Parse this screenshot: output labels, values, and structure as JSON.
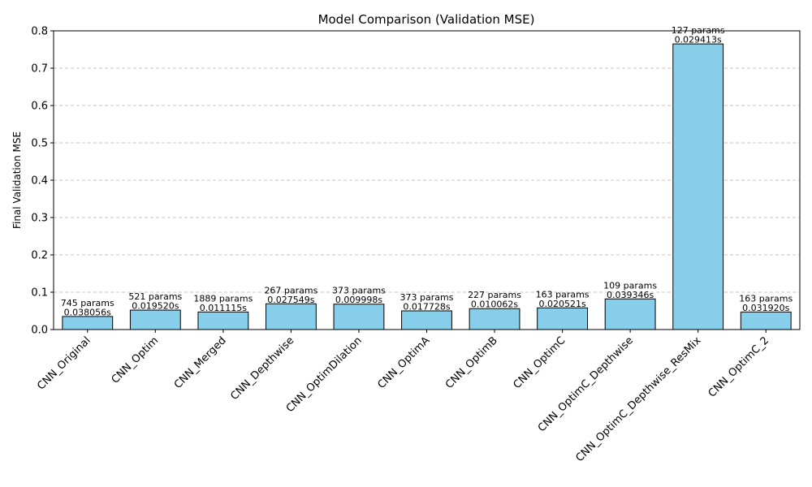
{
  "chart_data": {
    "type": "bar",
    "title": "Model Comparison (Validation MSE)",
    "xlabel": "",
    "ylabel": "Final Validation MSE",
    "ylim": [
      0,
      0.8
    ],
    "yticks": [
      "0.0",
      "0.1",
      "0.2",
      "0.3",
      "0.4",
      "0.5",
      "0.6",
      "0.7",
      "0.8"
    ],
    "grid": "y",
    "bar_color": "#87ceeb",
    "edge_color": "#000000",
    "categories": [
      "CNN_Original",
      "CNN_Optim",
      "CNN_Merged",
      "CNN_Depthwise",
      "CNN_OptimDilation",
      "CNN_OptimA",
      "CNN_OptimB",
      "CNN_OptimC",
      "CNN_OptimC_Depthwise",
      "CNN_OptimC_Depthwise_ResMix",
      "CNN_OptimC_2"
    ],
    "values": [
      0.035,
      0.052,
      0.047,
      0.069,
      0.068,
      0.05,
      0.056,
      0.058,
      0.082,
      0.765,
      0.047
    ],
    "annotations": [
      [
        "745 params",
        "0.038056s"
      ],
      [
        "521 params",
        "0.019520s"
      ],
      [
        "1889 params",
        "0.011115s"
      ],
      [
        "267 params",
        "0.027549s"
      ],
      [
        "373 params",
        "0.009998s"
      ],
      [
        "373 params",
        "0.017728s"
      ],
      [
        "227 params",
        "0.010062s"
      ],
      [
        "163 params",
        "0.020521s"
      ],
      [
        "109 params",
        "0.039346s"
      ],
      [
        "127 params",
        "0.029413s"
      ],
      [
        "163 params",
        "0.031920s"
      ]
    ]
  }
}
